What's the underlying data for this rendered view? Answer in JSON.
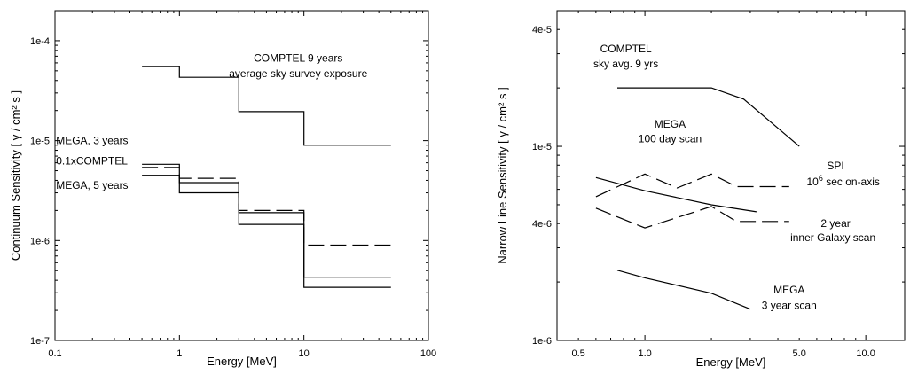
{
  "chart_data": [
    {
      "type": "line",
      "scale": {
        "x": "log",
        "y": "log"
      },
      "xlabel": "Energy [MeV]",
      "ylabel": "Continuum Sensitivity [ γ / cm² s ]",
      "xlim": [
        0.1,
        100
      ],
      "ylim": [
        1e-07,
        0.0002
      ],
      "xticks": [
        {
          "value": 0.1,
          "label": "0.1"
        },
        {
          "value": 1,
          "label": "1"
        },
        {
          "value": 10,
          "label": "10"
        },
        {
          "value": 100,
          "label": "100"
        }
      ],
      "yticks": [
        {
          "value": 1e-07,
          "label": "1e-7"
        },
        {
          "value": 1e-06,
          "label": "1e-6"
        },
        {
          "value": 1e-05,
          "label": "1e-5"
        },
        {
          "value": 0.0001,
          "label": "1e-4"
        }
      ],
      "series": [
        {
          "style": "solid",
          "points": [
            [
              0.5,
              5.5e-05
            ],
            [
              1,
              5.5e-05
            ],
            [
              1,
              4.3e-05
            ],
            [
              3,
              4.3e-05
            ],
            [
              3,
              1.95e-05
            ],
            [
              10,
              1.95e-05
            ],
            [
              10,
              9e-06
            ],
            [
              50,
              9e-06
            ]
          ]
        },
        {
          "style": "solid",
          "points": [
            [
              0.5,
              5.8e-06
            ],
            [
              1,
              5.8e-06
            ],
            [
              1,
              3.8e-06
            ],
            [
              3,
              3.8e-06
            ],
            [
              3,
              1.9e-06
            ],
            [
              10,
              1.9e-06
            ],
            [
              10,
              4.3e-07
            ],
            [
              50,
              4.3e-07
            ]
          ]
        },
        {
          "style": "dashed",
          "points": [
            [
              0.5,
              5.4e-06
            ],
            [
              1,
              5.4e-06
            ],
            [
              1,
              4.2e-06
            ],
            [
              3,
              4.2e-06
            ],
            [
              3,
              2e-06
            ],
            [
              10,
              2e-06
            ],
            [
              10,
              9e-07
            ],
            [
              50,
              9e-07
            ]
          ]
        },
        {
          "style": "solid",
          "points": [
            [
              0.5,
              4.5e-06
            ],
            [
              1,
              4.5e-06
            ],
            [
              1,
              3e-06
            ],
            [
              3,
              3e-06
            ],
            [
              3,
              1.45e-06
            ],
            [
              10,
              1.45e-06
            ],
            [
              10,
              3.4e-07
            ],
            [
              50,
              3.4e-07
            ]
          ]
        }
      ],
      "annotations": [
        {
          "text": "COMPTEL 9 years",
          "x": 9,
          "y": 6.2e-05,
          "anchor": "middle"
        },
        {
          "text": "average sky survey exposure",
          "x": 9,
          "y": 4.3e-05,
          "anchor": "middle"
        },
        {
          "text": "MEGA, 3 years",
          "x": 0.102,
          "y": 9.2e-06,
          "anchor": "start"
        },
        {
          "text": "0.1xCOMPTEL",
          "x": 0.102,
          "y": 5.8e-06,
          "anchor": "start"
        },
        {
          "text": "MEGA, 5 years",
          "x": 0.102,
          "y": 3.3e-06,
          "anchor": "start"
        }
      ]
    },
    {
      "type": "line",
      "scale": {
        "x": "log",
        "y": "log"
      },
      "xlabel": "Energy [MeV]",
      "ylabel": "Narrow Line Sensitivity [ γ / cm² s ]",
      "xlim": [
        0.4,
        15
      ],
      "ylim": [
        1e-06,
        5e-05
      ],
      "xticks": [
        {
          "value": 0.5,
          "label": "0.5"
        },
        {
          "value": 1,
          "label": "1.0"
        },
        {
          "value": 5,
          "label": "5.0"
        },
        {
          "value": 10,
          "label": "10.0"
        }
      ],
      "yticks": [
        {
          "value": 1e-06,
          "label": "1e-6"
        },
        {
          "value": 4e-06,
          "label": "4e-6"
        },
        {
          "value": 1e-05,
          "label": "1e-5"
        },
        {
          "value": 4e-05,
          "label": "4e-5"
        }
      ],
      "series": [
        {
          "style": "solid",
          "points": [
            [
              0.75,
              2e-05
            ],
            [
              2.0,
              2e-05
            ],
            [
              2.8,
              1.75e-05
            ],
            [
              5,
              1e-05
            ]
          ]
        },
        {
          "style": "solid",
          "points": [
            [
              0.6,
              6.9e-06
            ],
            [
              1.0,
              5.9e-06
            ],
            [
              2.0,
              5e-06
            ],
            [
              3.2,
              4.6e-06
            ]
          ]
        },
        {
          "style": "solid",
          "points": [
            [
              0.75,
              2.3e-06
            ],
            [
              1.0,
              2.1e-06
            ],
            [
              2.0,
              1.75e-06
            ],
            [
              3.0,
              1.45e-06
            ]
          ]
        },
        {
          "style": "dashed",
          "points": [
            [
              0.6,
              5.5e-06
            ],
            [
              1.0,
              7.2e-06
            ],
            [
              1.4,
              6.1e-06
            ],
            [
              2.0,
              7.2e-06
            ],
            [
              2.6,
              6.2e-06
            ],
            [
              4.5,
              6.2e-06
            ]
          ]
        },
        {
          "style": "dashed",
          "points": [
            [
              0.6,
              4.8e-06
            ],
            [
              1.0,
              3.8e-06
            ],
            [
              2.0,
              4.9e-06
            ],
            [
              2.6,
              4.1e-06
            ],
            [
              4.5,
              4.1e-06
            ]
          ]
        }
      ],
      "annotations": [
        {
          "text": "COMPTEL",
          "x": 0.82,
          "y": 3.05e-05,
          "anchor": "middle"
        },
        {
          "text": "sky avg. 9 yrs",
          "x": 0.82,
          "y": 2.55e-05,
          "anchor": "middle"
        },
        {
          "text": "MEGA",
          "x": 1.3,
          "y": 1.25e-05,
          "anchor": "middle"
        },
        {
          "text": "100 day scan",
          "x": 1.3,
          "y": 1.05e-05,
          "anchor": "middle"
        },
        {
          "text": "SPI",
          "x": 7.3,
          "y": 7.6e-06,
          "anchor": "middle"
        },
        {
          "text": "10",
          "sup": "6",
          "rest": " sec on-axis",
          "x": 5.4,
          "y": 6.3e-06,
          "anchor": "start"
        },
        {
          "text": "2 year",
          "x": 7.3,
          "y": 3.85e-06,
          "anchor": "middle"
        },
        {
          "text": "inner Galaxy scan",
          "x": 7.1,
          "y": 3.25e-06,
          "anchor": "middle"
        },
        {
          "text": "MEGA",
          "x": 4.5,
          "y": 1.75e-06,
          "anchor": "middle"
        },
        {
          "text": "3 year scan",
          "x": 4.5,
          "y": 1.45e-06,
          "anchor": "middle"
        }
      ]
    }
  ]
}
